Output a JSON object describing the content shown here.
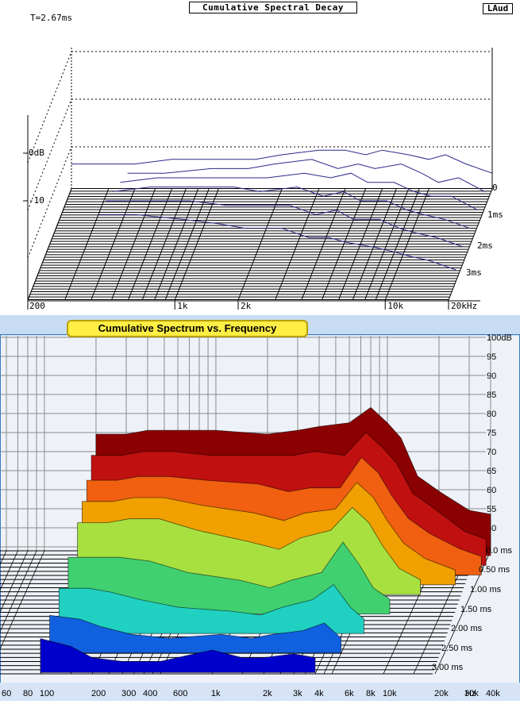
{
  "top_panel": {
    "title": "Cumulative Spectral Decay",
    "badge": "LAud",
    "time_label": "T=2.67ms"
  },
  "bottom_panel": {
    "title": "Cumulative Spectrum vs. Frequency"
  },
  "chart_data": [
    {
      "type": "area",
      "title": "Cumulative Spectral Decay",
      "annotation": "T=2.67ms",
      "xlabel": "",
      "ylabel": "",
      "x_scale": "log",
      "xlim": [
        200,
        20000
      ],
      "x_tick_labels": [
        "200",
        "1k",
        "2k",
        "10k",
        "20kHz"
      ],
      "y_tick_labels": [
        "0dB",
        "-10"
      ],
      "z_tick_labels": [
        "0",
        "1ms",
        "2ms",
        "3ms"
      ],
      "colors": {
        "line": "#2a2a8a",
        "grid": "#000000"
      },
      "series": [
        {
          "name": "",
          "time_ms": 0.0,
          "x": [
            200,
            400,
            600,
            1000,
            1500,
            2000,
            3000,
            4000,
            5000,
            6000,
            8000,
            10000,
            12000,
            15000,
            20000
          ],
          "y": [
            -2,
            -2,
            -1,
            -1,
            -1,
            0,
            1,
            1,
            0,
            1,
            0,
            -1,
            0,
            -2,
            -4
          ]
        },
        {
          "name": "",
          "time_ms": 0.5,
          "x": [
            400,
            600,
            1000,
            1500,
            2000,
            3000,
            4000,
            5000,
            6000,
            8000,
            10000,
            12000,
            15000,
            20000
          ],
          "y": [
            -4,
            -4,
            -3,
            -3,
            -2,
            -1,
            -3,
            -2,
            -3,
            -2,
            -4,
            -6,
            -5,
            -8
          ]
        },
        {
          "name": "",
          "time_ms": 1.0,
          "x": [
            400,
            600,
            1000,
            1500,
            2000,
            3000,
            4000,
            5000,
            6000,
            8000,
            10000,
            12000,
            15000,
            20000
          ],
          "y": [
            -6,
            -5,
            -5,
            -5,
            -5,
            -4,
            -5,
            -4,
            -6,
            -6,
            -8,
            -9,
            -9,
            -12
          ]
        },
        {
          "name": "",
          "time_ms": 1.5,
          "x": [
            400,
            600,
            1000,
            1500,
            2000,
            3000,
            4000,
            5000,
            6000,
            8000,
            10000,
            12000,
            15000,
            20000
          ],
          "y": [
            -8,
            -7,
            -7,
            -7,
            -8,
            -7,
            -9,
            -8,
            -10,
            -10,
            -12,
            -13,
            -14,
            -16
          ]
        },
        {
          "name": "",
          "time_ms": 2.0,
          "x": [
            400,
            600,
            1000,
            1500,
            2000,
            3000,
            4000,
            5000,
            6000,
            8000,
            10000,
            12000,
            15000,
            20000
          ],
          "y": [
            -10,
            -10,
            -10,
            -11,
            -11,
            -11,
            -13,
            -12,
            -14,
            -14,
            -16,
            -17,
            -18,
            -20
          ]
        },
        {
          "name": "",
          "time_ms": 2.5,
          "x": [
            400,
            600,
            1000,
            1500,
            2000,
            3000,
            4000,
            5000,
            6000,
            8000,
            10000,
            12000,
            15000,
            20000
          ],
          "y": [
            -13,
            -13,
            -14,
            -15,
            -16,
            -16,
            -18,
            -18,
            -19,
            -20,
            -21,
            -22,
            -23,
            -25
          ]
        }
      ]
    },
    {
      "type": "area",
      "title": "Cumulative Spectrum vs. Frequency",
      "xlabel": "Hz",
      "ylabel": "",
      "x_scale": "log",
      "xlim": [
        60,
        40000
      ],
      "x_tick_labels": [
        "60",
        "80",
        "100",
        "200",
        "300",
        "400",
        "600",
        "1k",
        "2k",
        "3k",
        "4k",
        "6k",
        "8k",
        "10k",
        "20k",
        "30k",
        "40k",
        "Hz"
      ],
      "y_tick_labels": [
        "100dB",
        "95",
        "90",
        "85",
        "80",
        "75",
        "70",
        "65",
        "60",
        "55",
        "50"
      ],
      "ylim": [
        45,
        100
      ],
      "z_tick_labels": [
        "0.0 ms",
        "0.50 ms",
        "1.00 ms",
        "1.50 ms",
        "2.00 ms",
        "2.50 ms",
        "3.00 ms"
      ],
      "grid": true,
      "colors": {
        "background": "#eef2f8",
        "grid": "#8a8a8a",
        "title_box": "#ffee44",
        "slice_start": "#8b0000",
        "slice_end": "#0000cc"
      },
      "series": [
        {
          "name": "",
          "time_ms": 0.0,
          "x": [
            200,
            300,
            400,
            600,
            1000,
            2000,
            3000,
            4000,
            6000,
            8000,
            10000,
            12000,
            15000,
            20000,
            30000,
            40000
          ],
          "y": [
            75,
            75,
            76,
            76,
            76,
            75,
            76,
            77,
            78,
            82,
            78,
            74,
            64,
            60,
            55,
            54
          ]
        },
        {
          "name": "",
          "time_ms": 0.25,
          "x": [
            200,
            300,
            400,
            600,
            1000,
            2000,
            3000,
            4000,
            6000,
            8000,
            10000,
            12000,
            15000,
            20000,
            30000,
            40000
          ],
          "y": [
            72,
            72,
            73,
            73,
            72,
            72,
            72,
            73,
            72,
            78,
            74,
            70,
            62,
            58,
            52,
            50
          ]
        },
        {
          "name": "",
          "time_ms": 0.5,
          "x": [
            200,
            300,
            400,
            600,
            1000,
            2000,
            3000,
            4000,
            6000,
            8000,
            10000,
            12000,
            15000,
            20000,
            30000,
            40000
          ],
          "y": [
            68,
            68,
            69,
            69,
            68,
            67,
            65,
            66,
            66,
            74,
            70,
            64,
            58,
            54,
            50,
            48
          ]
        },
        {
          "name": "",
          "time_ms": 0.75,
          "x": [
            200,
            300,
            400,
            600,
            1000,
            2000,
            3000,
            4000,
            6000,
            8000,
            10000,
            12000,
            15000,
            20000,
            30000
          ],
          "y": [
            65,
            65,
            66,
            66,
            64,
            62,
            60,
            62,
            63,
            70,
            66,
            60,
            54,
            50,
            47
          ]
        },
        {
          "name": "",
          "time_ms": 1.0,
          "x": [
            200,
            300,
            400,
            600,
            1000,
            2000,
            3000,
            4000,
            6000,
            8000,
            10000,
            12000,
            15000,
            20000
          ],
          "y": [
            62,
            62,
            63,
            63,
            60,
            57,
            55,
            58,
            60,
            66,
            62,
            56,
            50,
            47
          ]
        },
        {
          "name": "",
          "time_ms": 1.5,
          "x": [
            200,
            300,
            400,
            600,
            1000,
            2000,
            3000,
            4000,
            6000,
            8000,
            10000,
            12000,
            15000
          ],
          "y": [
            58,
            58,
            58,
            57,
            54,
            52,
            50,
            52,
            54,
            62,
            56,
            50,
            47
          ]
        },
        {
          "name": "",
          "time_ms": 2.0,
          "x": [
            200,
            300,
            400,
            600,
            1000,
            2000,
            3000,
            4000,
            6000,
            8000,
            10000,
            12000
          ],
          "y": [
            55,
            55,
            54,
            52,
            50,
            49,
            48,
            50,
            52,
            56,
            50,
            47
          ]
        },
        {
          "name": "",
          "time_ms": 2.5,
          "x": [
            200,
            300,
            400,
            600,
            1000,
            2000,
            3000,
            4000,
            6000,
            8000,
            10000
          ],
          "y": [
            53,
            52,
            50,
            48,
            47,
            48,
            47,
            48,
            49,
            51,
            47
          ]
        },
        {
          "name": "",
          "time_ms": 3.0,
          "x": [
            200,
            300,
            400,
            600,
            1000,
            2000,
            3000,
            4000,
            6000,
            8000
          ],
          "y": [
            52,
            50,
            47,
            46,
            46,
            49,
            47,
            47,
            48,
            47
          ]
        }
      ]
    }
  ]
}
